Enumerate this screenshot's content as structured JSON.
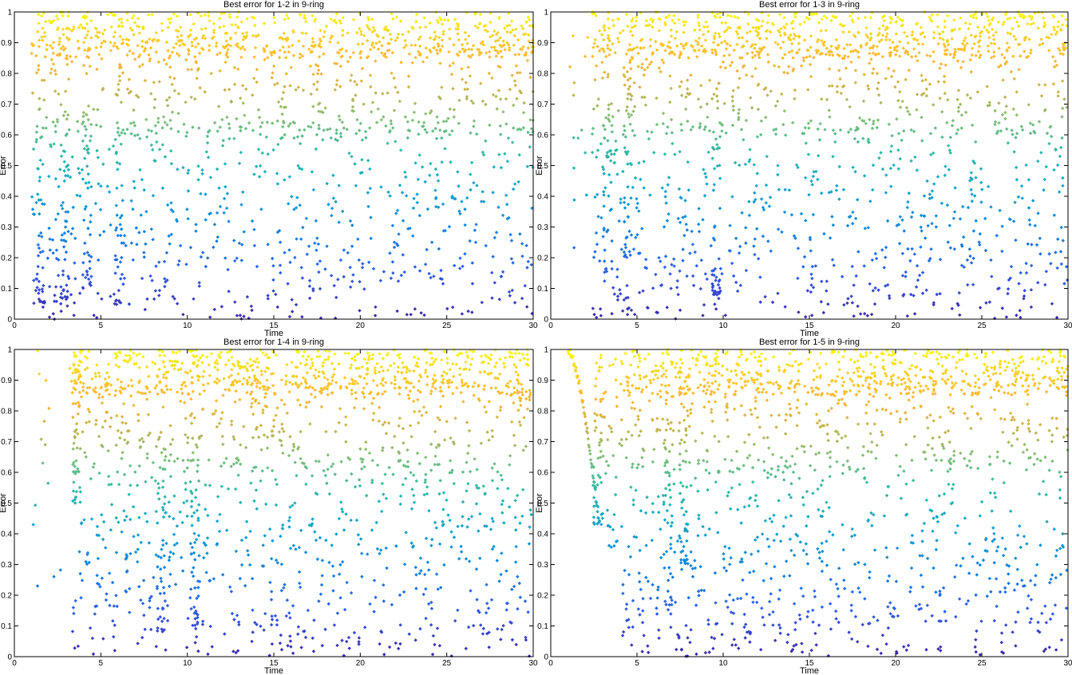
{
  "chart_data": [
    {
      "type": "scatter",
      "title": "Best error for 1-2 in 9-ring",
      "xlabel": "Time",
      "ylabel": "Error",
      "xlim": [
        0,
        30
      ],
      "ylim": [
        0,
        1
      ],
      "xticks": [
        0,
        5,
        10,
        15,
        20,
        25,
        30
      ],
      "yticks": [
        0,
        0.1,
        0.2,
        0.3,
        0.4,
        0.5,
        0.6,
        0.7,
        0.8,
        0.9,
        1
      ],
      "ytick_labels": [
        "0",
        "0.1",
        "0.2",
        "0.3",
        "0.4",
        "0.5",
        "0.6",
        "0.7",
        "0.8",
        "0.9",
        "1"
      ],
      "grid": false,
      "colormap": "parula (value-mapped: low = #3e26a8, high = #f9fb0e)",
      "point_spread": "dense noisy scatter from t≈1 to 30 across 0–1",
      "onset": 1.0,
      "transient_dips": [
        [
          1.5,
          0.05
        ],
        [
          2.9,
          0.05
        ],
        [
          4.2,
          0.1
        ],
        [
          6.0,
          0.05
        ]
      ],
      "n_points": 1600,
      "seed": 11
    },
    {
      "type": "scatter",
      "title": "Best error for 1-3 in 9-ring",
      "xlabel": "Time",
      "ylabel": "Error",
      "xlim": [
        0,
        30
      ],
      "ylim": [
        0,
        1
      ],
      "xticks": [
        0,
        5,
        10,
        15,
        20,
        25,
        30
      ],
      "yticks": [
        0,
        0.1,
        0.2,
        0.3,
        0.4,
        0.5,
        0.6,
        0.7,
        0.8,
        0.9,
        1
      ],
      "ytick_labels": [
        "0",
        "0.1",
        "0.2",
        "0.3",
        "0.4",
        "0.5",
        "0.6",
        "0.7",
        "0.8",
        "0.9",
        "1"
      ],
      "grid": false,
      "colormap": "parula (value-mapped: low = #3e26a8, high = #f9fb0e)",
      "point_spread": "sparse early points t≈1–2, dense from t≈2.5 to 30",
      "onset": 2.4,
      "transient_dips": [
        [
          3.3,
          0.15
        ],
        [
          4.5,
          0.2
        ],
        [
          9.6,
          0.08
        ]
      ],
      "n_points": 1600,
      "seed": 23
    },
    {
      "type": "scatter",
      "title": "Best error for 1-4 in 9-ring",
      "xlabel": "Time",
      "ylabel": "Error",
      "xlim": [
        0,
        30
      ],
      "ylim": [
        0,
        1
      ],
      "xticks": [
        0,
        5,
        10,
        15,
        20,
        25,
        30
      ],
      "yticks": [
        0,
        0.1,
        0.2,
        0.3,
        0.4,
        0.5,
        0.6,
        0.7,
        0.8,
        0.9,
        1
      ],
      "ytick_labels": [
        "0",
        "0.1",
        "0.2",
        "0.3",
        "0.4",
        "0.5",
        "0.6",
        "0.7",
        "0.8",
        "0.9",
        "1"
      ],
      "grid": false,
      "colormap": "parula (value-mapped: low = #3e26a8, high = #f9fb0e)",
      "point_spread": "sparse early points t≈1–3, dense from t≈3.5 to 30",
      "onset": 3.2,
      "transient_dips": [
        [
          3.6,
          0.5
        ],
        [
          8.5,
          0.08
        ],
        [
          10.4,
          0.1
        ]
      ],
      "n_points": 1600,
      "seed": 37
    },
    {
      "type": "scatter",
      "title": "Best error for 1-5 in 9-ring",
      "xlabel": "Time",
      "ylabel": "Error",
      "xlim": [
        0,
        30
      ],
      "ylim": [
        0,
        1
      ],
      "xticks": [
        0,
        5,
        10,
        15,
        20,
        25,
        30
      ],
      "yticks": [
        0,
        0.1,
        0.2,
        0.3,
        0.4,
        0.5,
        0.6,
        0.7,
        0.8,
        0.9,
        1
      ],
      "ytick_labels": [
        "0",
        "0.1",
        "0.2",
        "0.3",
        "0.4",
        "0.5",
        "0.6",
        "0.7",
        "0.8",
        "0.9",
        "1"
      ],
      "grid": false,
      "colormap": "parula (value-mapped: low = #3e26a8, high = #f9fb0e)",
      "point_spread": "smooth descending curve t≈1–2.8 to ≈0.43, dense noisy from t≈4 to 30",
      "onset": 4.0,
      "transient_dips": [
        [
          2.7,
          0.43
        ],
        [
          7.7,
          0.3
        ],
        [
          6.8,
          0.15
        ]
      ],
      "n_points": 1500,
      "seed": 53
    }
  ]
}
